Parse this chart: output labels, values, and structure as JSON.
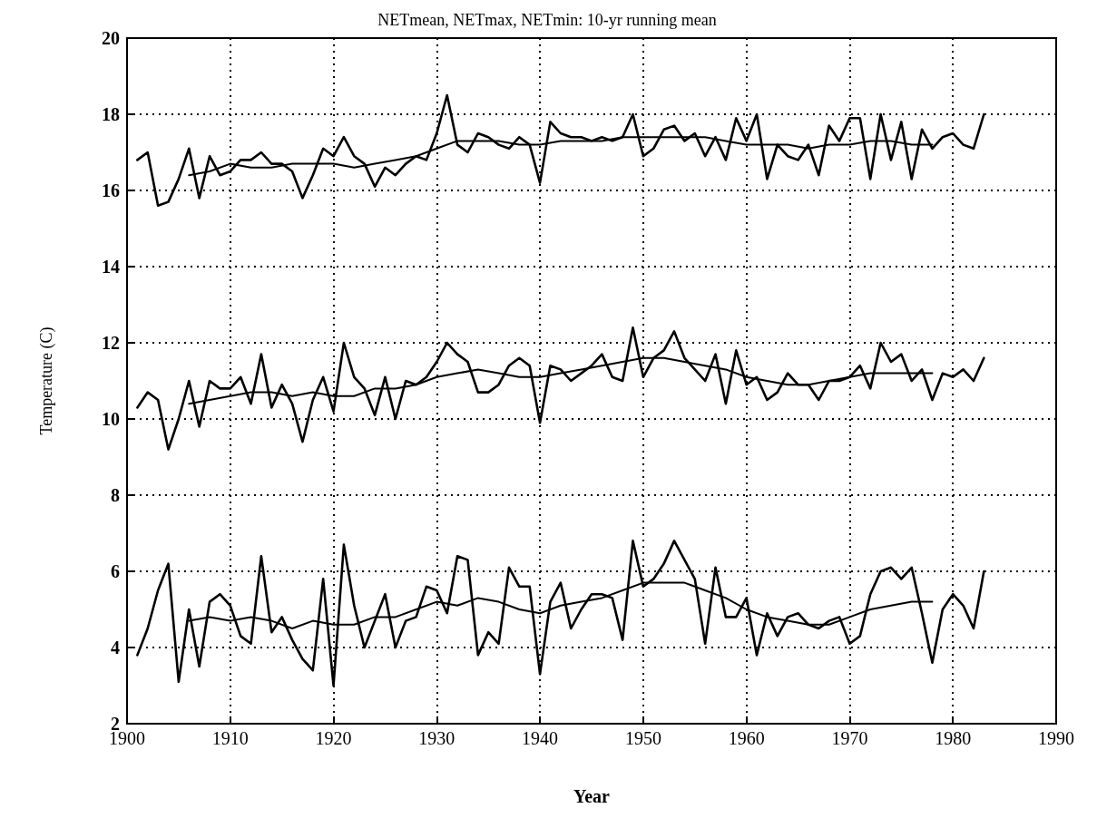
{
  "chart_data": {
    "type": "line",
    "title": "NETmean, NETmax, NETmin: 10-yr running mean",
    "xlabel": "Year",
    "ylabel": "Temperature (C)",
    "x": [
      1901,
      1902,
      1903,
      1904,
      1905,
      1906,
      1907,
      1908,
      1909,
      1910,
      1911,
      1912,
      1913,
      1914,
      1915,
      1916,
      1917,
      1918,
      1919,
      1920,
      1921,
      1922,
      1923,
      1924,
      1925,
      1926,
      1927,
      1928,
      1929,
      1930,
      1931,
      1932,
      1933,
      1934,
      1935,
      1936,
      1937,
      1938,
      1939,
      1940,
      1941,
      1942,
      1943,
      1944,
      1945,
      1946,
      1947,
      1948,
      1949,
      1950,
      1951,
      1952,
      1953,
      1954,
      1955,
      1956,
      1957,
      1958,
      1959,
      1960,
      1961,
      1962,
      1963,
      1964,
      1965,
      1966,
      1967,
      1968,
      1969,
      1970,
      1971,
      1972,
      1973,
      1974,
      1975,
      1976,
      1977,
      1978,
      1979,
      1980,
      1981,
      1982,
      1983
    ],
    "xlim": [
      1900,
      1990
    ],
    "xticks": [
      1900,
      1910,
      1920,
      1930,
      1940,
      1950,
      1960,
      1970,
      1980,
      1990
    ],
    "ylim": [
      2,
      20
    ],
    "yticks": [
      2,
      4,
      6,
      8,
      10,
      12,
      14,
      16,
      18,
      20
    ],
    "grid": true,
    "marker": "none",
    "line_style": "solid",
    "series": [
      {
        "color": "#000000",
        "values": [
          16.8,
          17.0,
          15.6,
          15.7,
          16.3,
          17.1,
          15.8,
          16.9,
          16.4,
          16.5,
          16.8,
          16.8,
          17.0,
          16.7,
          16.7,
          16.5,
          15.8,
          16.4,
          17.1,
          16.9,
          17.4,
          16.9,
          16.7,
          16.1,
          16.6,
          16.4,
          16.7,
          16.9,
          16.8,
          17.5,
          18.5,
          17.2,
          17.0,
          17.5,
          17.4,
          17.2,
          17.1,
          17.4,
          17.2,
          16.2,
          17.8,
          17.5,
          17.4,
          17.4,
          17.3,
          17.4,
          17.3,
          17.4,
          18.0,
          16.9,
          17.1,
          17.6,
          17.7,
          17.3,
          17.5,
          16.9,
          17.4,
          16.8,
          17.9,
          17.3,
          18.0,
          16.3,
          17.2,
          16.9,
          16.8,
          17.2,
          16.4,
          17.7,
          17.3,
          17.9,
          17.9,
          16.3,
          18.0,
          16.8,
          17.8,
          16.3,
          17.6,
          17.1,
          17.4,
          17.5,
          17.2,
          17.1,
          18.0
        ]
      },
      {
        "color": "#000000",
        "x": [
          1906,
          1908,
          1910,
          1912,
          1914,
          1916,
          1918,
          1920,
          1922,
          1924,
          1926,
          1928,
          1930,
          1932,
          1934,
          1936,
          1938,
          1940,
          1942,
          1944,
          1946,
          1948,
          1950,
          1952,
          1954,
          1956,
          1958,
          1960,
          1962,
          1964,
          1966,
          1968,
          1970,
          1972,
          1974,
          1976,
          1978
        ],
        "values": [
          16.4,
          16.5,
          16.7,
          16.6,
          16.6,
          16.7,
          16.7,
          16.7,
          16.6,
          16.7,
          16.8,
          16.9,
          17.1,
          17.3,
          17.3,
          17.3,
          17.2,
          17.2,
          17.3,
          17.3,
          17.3,
          17.4,
          17.4,
          17.4,
          17.4,
          17.4,
          17.3,
          17.2,
          17.2,
          17.2,
          17.1,
          17.2,
          17.2,
          17.3,
          17.3,
          17.2,
          17.2
        ]
      },
      {
        "color": "#000000",
        "values": [
          10.3,
          10.7,
          10.5,
          9.2,
          10.0,
          11.0,
          9.8,
          11.0,
          10.8,
          10.8,
          11.1,
          10.4,
          11.7,
          10.3,
          10.9,
          10.4,
          9.4,
          10.5,
          11.1,
          10.2,
          12.0,
          11.1,
          10.8,
          10.1,
          11.1,
          10.0,
          11.0,
          10.9,
          11.1,
          11.5,
          12.0,
          11.7,
          11.5,
          10.7,
          10.7,
          10.9,
          11.4,
          11.6,
          11.4,
          9.9,
          11.4,
          11.3,
          11.0,
          11.2,
          11.4,
          11.7,
          11.1,
          11.0,
          12.4,
          11.1,
          11.6,
          11.8,
          12.3,
          11.6,
          11.3,
          11.0,
          11.7,
          10.4,
          11.8,
          10.9,
          11.1,
          10.5,
          10.7,
          11.2,
          10.9,
          10.9,
          10.5,
          11.0,
          11.0,
          11.1,
          11.4,
          10.8,
          12.0,
          11.5,
          11.7,
          11.0,
          11.3,
          10.5,
          11.2,
          11.1,
          11.3,
          11.0,
          11.6
        ]
      },
      {
        "color": "#000000",
        "x": [
          1906,
          1908,
          1910,
          1912,
          1914,
          1916,
          1918,
          1920,
          1922,
          1924,
          1926,
          1928,
          1930,
          1932,
          1934,
          1936,
          1938,
          1940,
          1942,
          1944,
          1946,
          1948,
          1950,
          1952,
          1954,
          1956,
          1958,
          1960,
          1962,
          1964,
          1966,
          1968,
          1970,
          1972,
          1974,
          1976,
          1978
        ],
        "values": [
          10.4,
          10.5,
          10.6,
          10.7,
          10.7,
          10.6,
          10.7,
          10.6,
          10.6,
          10.8,
          10.8,
          10.9,
          11.1,
          11.2,
          11.3,
          11.2,
          11.1,
          11.1,
          11.2,
          11.3,
          11.4,
          11.5,
          11.6,
          11.6,
          11.5,
          11.4,
          11.3,
          11.1,
          11.0,
          10.9,
          10.9,
          11.0,
          11.1,
          11.2,
          11.2,
          11.2,
          11.2
        ]
      },
      {
        "color": "#000000",
        "values": [
          3.8,
          4.5,
          5.5,
          6.2,
          3.1,
          5.0,
          3.5,
          5.2,
          5.4,
          5.1,
          4.3,
          4.1,
          6.4,
          4.4,
          4.8,
          4.2,
          3.7,
          3.4,
          5.8,
          3.0,
          6.7,
          5.1,
          4.0,
          4.7,
          5.4,
          4.0,
          4.7,
          4.8,
          5.6,
          5.5,
          4.9,
          6.4,
          6.3,
          3.8,
          4.4,
          4.1,
          6.1,
          5.6,
          5.6,
          3.3,
          5.2,
          5.7,
          4.5,
          5.0,
          5.4,
          5.4,
          5.3,
          4.2,
          6.8,
          5.6,
          5.8,
          6.2,
          6.8,
          6.3,
          5.8,
          4.1,
          6.1,
          4.8,
          4.8,
          5.3,
          3.8,
          4.9,
          4.3,
          4.8,
          4.9,
          4.6,
          4.5,
          4.7,
          4.8,
          4.1,
          4.3,
          5.4,
          6.0,
          6.1,
          5.8,
          6.1,
          4.9,
          3.6,
          5.0,
          5.4,
          5.1,
          4.5,
          6.0
        ]
      },
      {
        "color": "#000000",
        "x": [
          1906,
          1908,
          1910,
          1912,
          1914,
          1916,
          1918,
          1920,
          1922,
          1924,
          1926,
          1928,
          1930,
          1932,
          1934,
          1936,
          1938,
          1940,
          1942,
          1944,
          1946,
          1948,
          1950,
          1952,
          1954,
          1956,
          1958,
          1960,
          1962,
          1964,
          1966,
          1968,
          1970,
          1972,
          1974,
          1976,
          1978
        ],
        "values": [
          4.7,
          4.8,
          4.7,
          4.8,
          4.7,
          4.5,
          4.7,
          4.6,
          4.6,
          4.8,
          4.8,
          5.0,
          5.2,
          5.1,
          5.3,
          5.2,
          5.0,
          4.9,
          5.1,
          5.2,
          5.3,
          5.5,
          5.7,
          5.7,
          5.7,
          5.5,
          5.3,
          5.0,
          4.8,
          4.7,
          4.6,
          4.6,
          4.8,
          5.0,
          5.1,
          5.2,
          5.2
        ]
      }
    ]
  }
}
